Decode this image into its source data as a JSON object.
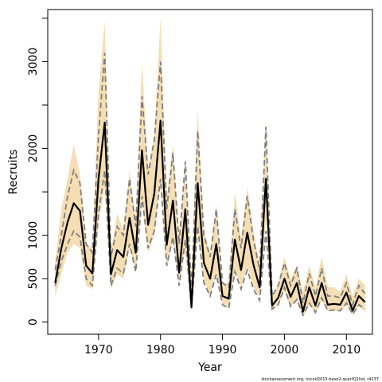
{
  "chart_data": {
    "type": "line",
    "xlabel": "Year",
    "ylabel": "Recruits",
    "footnote": "stockassessment.org, nscod2015-base2-quartQ1lsd, r4237",
    "xlim": [
      1961.8,
      2014.2
    ],
    "ylim": [
      -140,
      3600
    ],
    "x_ticks": [
      1970,
      1980,
      1990,
      2000,
      2010
    ],
    "y_ticks": [
      0,
      500,
      1000,
      2000,
      3000
    ],
    "y_minor_ticks": [
      0,
      500,
      1000,
      1500,
      2000,
      2500,
      3000,
      3500
    ],
    "grid": false,
    "colors": {
      "band": "#f5deb3",
      "estimate": "#000000",
      "dashed": "#7f7f7f"
    },
    "x": [
      1963,
      1964,
      1965,
      1966,
      1967,
      1968,
      1969,
      1970,
      1971,
      1972,
      1973,
      1974,
      1975,
      1976,
      1977,
      1978,
      1979,
      1980,
      1981,
      1982,
      1983,
      1984,
      1985,
      1986,
      1987,
      1988,
      1989,
      1990,
      1991,
      1992,
      1993,
      1994,
      1995,
      1996,
      1997,
      1998,
      1999,
      2000,
      2001,
      2002,
      2003,
      2004,
      2005,
      2006,
      2007,
      2008,
      2009,
      2010,
      2011,
      2012,
      2013
    ],
    "series": [
      {
        "role": "estimate",
        "values": [
          450,
          850,
          1150,
          1370,
          1280,
          650,
          560,
          1650,
          2300,
          550,
          830,
          750,
          1200,
          800,
          1980,
          1120,
          1480,
          2320,
          890,
          1400,
          570,
          1300,
          170,
          1600,
          680,
          500,
          900,
          300,
          270,
          950,
          600,
          1030,
          660,
          400,
          1650,
          190,
          280,
          500,
          290,
          450,
          120,
          400,
          190,
          450,
          200,
          210,
          200,
          340,
          130,
          300,
          230
        ]
      },
      {
        "role": "upper-dashed",
        "values": [
          600,
          1000,
          1450,
          1750,
          1600,
          900,
          800,
          2150,
          3100,
          750,
          1100,
          1000,
          1650,
          1100,
          2600,
          1700,
          2100,
          3000,
          1300,
          1950,
          900,
          1850,
          350,
          2200,
          1000,
          750,
          1300,
          450,
          400,
          1300,
          850,
          1450,
          950,
          600,
          2250,
          300,
          420,
          680,
          420,
          620,
          220,
          560,
          300,
          620,
          300,
          300,
          280,
          450,
          200,
          420,
          330
        ]
      },
      {
        "role": "lower-dashed",
        "values": [
          420,
          700,
          900,
          1050,
          980,
          500,
          420,
          1250,
          1750,
          420,
          620,
          560,
          900,
          580,
          1450,
          850,
          1050,
          1650,
          650,
          980,
          420,
          950,
          160,
          1100,
          450,
          300,
          550,
          200,
          160,
          580,
          380,
          600,
          380,
          250,
          1050,
          150,
          200,
          400,
          180,
          260,
          80,
          220,
          110,
          280,
          130,
          140,
          130,
          220,
          90,
          200,
          150
        ]
      },
      {
        "role": "band-upper",
        "values": [
          700,
          1300,
          1650,
          2050,
          1700,
          900,
          850,
          2650,
          3470,
          800,
          1250,
          1050,
          1750,
          1150,
          3000,
          1750,
          2150,
          3500,
          1450,
          2050,
          950,
          1800,
          500,
          2450,
          1050,
          800,
          1350,
          450,
          450,
          1500,
          950,
          1550,
          1050,
          650,
          2320,
          300,
          450,
          750,
          500,
          650,
          350,
          650,
          400,
          750,
          400,
          400,
          350,
          550,
          300,
          500,
          420
        ]
      },
      {
        "role": "band-lower",
        "values": [
          300,
          550,
          800,
          900,
          850,
          420,
          380,
          1150,
          1550,
          380,
          550,
          500,
          850,
          600,
          1400,
          800,
          1000,
          1650,
          620,
          950,
          420,
          850,
          130,
          1050,
          480,
          300,
          580,
          220,
          170,
          600,
          400,
          650,
          400,
          280,
          1200,
          130,
          200,
          350,
          170,
          250,
          60,
          200,
          100,
          250,
          120,
          130,
          120,
          200,
          80,
          180,
          120
        ]
      }
    ]
  }
}
